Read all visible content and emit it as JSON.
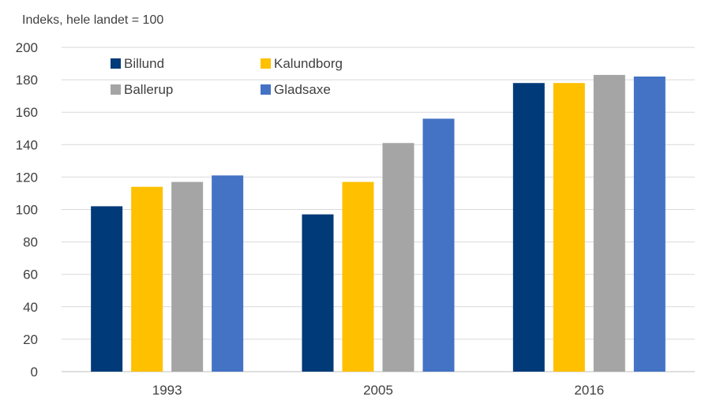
{
  "chart_data": {
    "type": "bar",
    "ylabel": "Indeks, hele landet = 100",
    "categories": [
      "1993",
      "2005",
      "2016"
    ],
    "ylim": [
      0,
      200
    ],
    "yticks": [
      0,
      20,
      40,
      60,
      80,
      100,
      120,
      140,
      160,
      180,
      200
    ],
    "grid": true,
    "legend_position": "top-left",
    "series": [
      {
        "name": "Billund",
        "color": "#003a78",
        "values": [
          102,
          97,
          178
        ]
      },
      {
        "name": "Kalundborg",
        "color": "#ffc000",
        "values": [
          114,
          117,
          178
        ]
      },
      {
        "name": "Ballerup",
        "color": "#a5a5a5",
        "values": [
          117,
          141,
          183
        ]
      },
      {
        "name": "Gladsaxe",
        "color": "#4472c4",
        "values": [
          121,
          156,
          182
        ]
      }
    ]
  }
}
